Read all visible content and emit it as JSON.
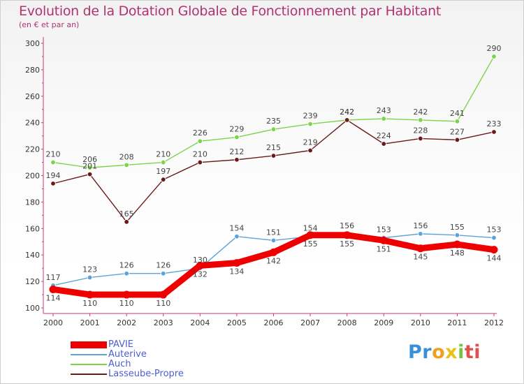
{
  "chart_data": {
    "type": "line",
    "title": "Evolution de la Dotation Globale de Fonctionnement par Habitant",
    "subtitle": "(en € et par an)",
    "xlabel": "",
    "ylabel": "",
    "x": [
      "2000",
      "2001",
      "2002",
      "2003",
      "2004",
      "2005",
      "2006",
      "2007",
      "2008",
      "2009",
      "2010",
      "2011",
      "2012"
    ],
    "ylim": [
      100,
      300
    ],
    "yticks": [
      100,
      120,
      140,
      160,
      180,
      200,
      220,
      240,
      260,
      280,
      300
    ],
    "grid": false,
    "series": [
      {
        "name": "PAVIE",
        "color": "#ee0000",
        "values": [
          114,
          110,
          110,
          110,
          132,
          134,
          142,
          155,
          155,
          151,
          145,
          148,
          144
        ]
      },
      {
        "name": "Auterive",
        "color": "#5ba3d9",
        "values": [
          117,
          123,
          126,
          126,
          130,
          154,
          151,
          154,
          156,
          153,
          156,
          155,
          153
        ]
      },
      {
        "name": "Auch",
        "color": "#7dd34a",
        "values": [
          210,
          206,
          208,
          210,
          226,
          229,
          235,
          239,
          242,
          243,
          242,
          241,
          290
        ]
      },
      {
        "name": "Lasseube-Propre",
        "color": "#6b1a1a",
        "values": [
          194,
          201,
          165,
          197,
          210,
          212,
          215,
          219,
          242,
          224,
          228,
          227,
          233
        ]
      }
    ]
  },
  "logo": {
    "p1": "Pr",
    "p2": "o",
    "p3": "x",
    "p4": "i",
    "p5": "ti"
  }
}
